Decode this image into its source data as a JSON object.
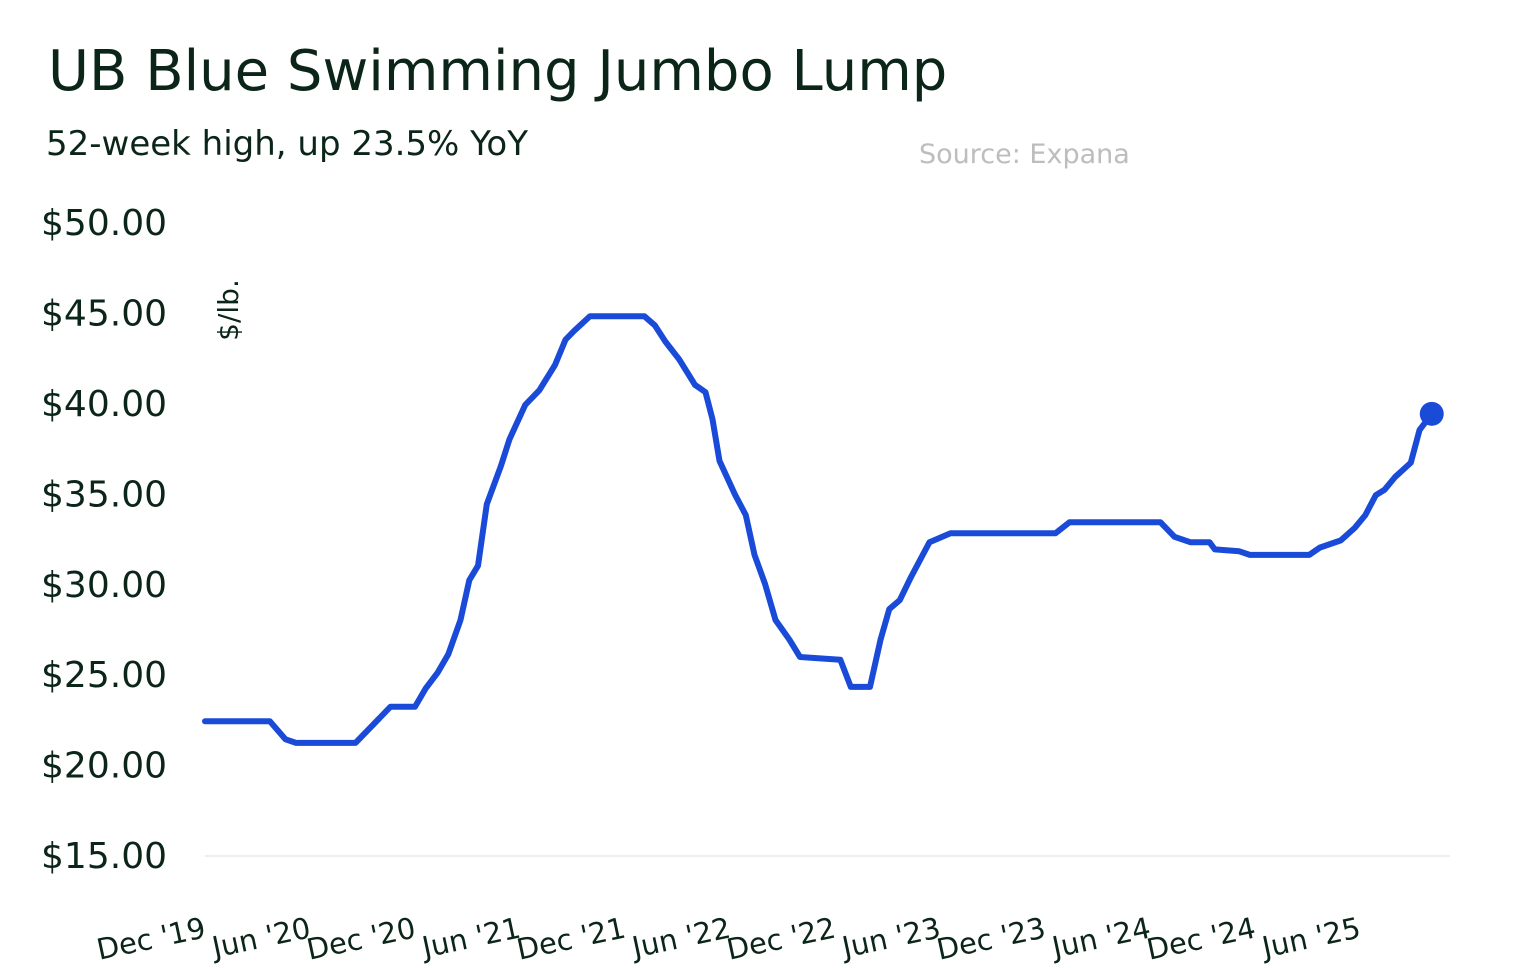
{
  "chart_data": {
    "type": "line",
    "title": "UB Blue Swimming Jumbo Lump",
    "subtitle": "52-week high, up 23.5% YoY",
    "source": "Source: Expana",
    "ylabel": "$/lb.",
    "xlabel": "",
    "ylim": [
      15,
      50
    ],
    "yticks": [
      15,
      20,
      25,
      30,
      35,
      40,
      45,
      50
    ],
    "ytick_labels": [
      "$15.00",
      "$20.00",
      "$25.00",
      "$30.00",
      "$35.00",
      "$40.00",
      "$45.00",
      "$50.00"
    ],
    "x_unit": "months since Dec 2019",
    "xticks": [
      0,
      6,
      12,
      18,
      24,
      30,
      36,
      42,
      48,
      54,
      60,
      66
    ],
    "xtick_labels": [
      "Dec '19",
      "Jun '20",
      "Dec '20",
      "Jun '21",
      "Dec '21",
      "Jun '22",
      "Dec '22",
      "Jun '23",
      "Dec '23",
      "Jun '24",
      "Dec '24",
      "Jun '25"
    ],
    "grid": false,
    "color": "#1a4bd8",
    "series": [
      {
        "name": "UB Blue Swimming Jumbo Lump",
        "x": [
          0,
          3.7,
          4.6,
          5.2,
          8.6,
          9.7,
          10.6,
          12,
          12.6,
          13.3,
          13.9,
          14.6,
          15.1,
          15.6,
          16.1,
          16.9,
          17.4,
          18.3,
          19.1,
          20,
          20.6,
          21.1,
          22,
          25.1,
          25.7,
          26.3,
          27.1,
          28,
          28.6,
          29,
          29.4,
          30.3,
          30.9,
          31.4,
          32,
          32.6,
          33.4,
          34,
          36.3,
          36.9,
          38,
          38.6,
          39.1,
          39.7,
          40.3,
          41.4,
          42.6,
          48.6,
          49.4,
          54.6,
          55.4,
          56.3,
          57.4,
          57.7,
          59.1,
          59.7,
          63.1,
          63.7,
          64.9,
          65.7,
          66.3,
          66.9,
          67.4,
          68,
          68.9,
          69.4,
          70.1
        ],
        "y": [
          22.4,
          22.4,
          21.4,
          21.2,
          21.2,
          22.3,
          23.2,
          23.2,
          24.2,
          25.1,
          26.1,
          28,
          30.2,
          31,
          34.4,
          36.5,
          38,
          39.9,
          40.7,
          42.1,
          43.5,
          44,
          44.8,
          44.8,
          44.3,
          43.4,
          42.4,
          41,
          40.6,
          39.1,
          36.8,
          34.9,
          33.8,
          31.6,
          30,
          28,
          26.9,
          25.95,
          25.8,
          24.3,
          24.3,
          26.9,
          28.6,
          29.1,
          30.3,
          32.3,
          32.8,
          32.8,
          33.4,
          33.4,
          32.6,
          32.3,
          32.3,
          31.9,
          31.8,
          31.6,
          31.6,
          32,
          32.4,
          33.1,
          33.8,
          34.9,
          35.2,
          35.9,
          36.7,
          38.5,
          39.4
        ]
      }
    ]
  }
}
